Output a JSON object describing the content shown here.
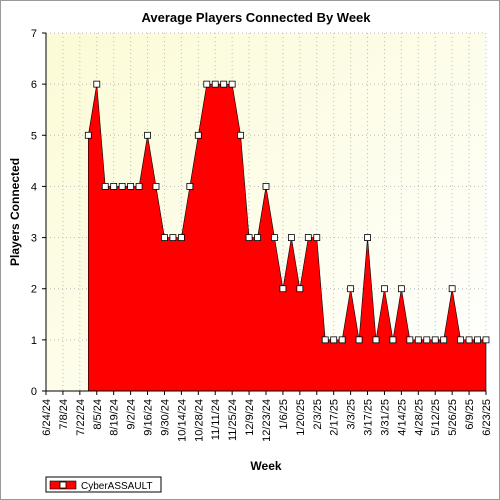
{
  "chart_data": {
    "type": "area",
    "title": "Average Players Connected By Week",
    "xlabel": "Week",
    "ylabel": "Players Connected",
    "ylim": [
      0,
      7
    ],
    "yticks": [
      0,
      1,
      2,
      3,
      4,
      5,
      6,
      7
    ],
    "grid": true,
    "legend": "bottom-left",
    "x_tick_labels": [
      "6/24/24",
      "7/8/24",
      "7/22/24",
      "8/5/24",
      "8/19/24",
      "9/2/24",
      "9/16/24",
      "9/30/24",
      "10/14/24",
      "10/28/24",
      "11/11/24",
      "11/25/24",
      "12/9/24",
      "12/23/24",
      "1/6/25",
      "1/20/25",
      "2/3/25",
      "2/17/25",
      "3/3/25",
      "3/17/25",
      "3/31/25",
      "4/14/25",
      "4/28/25",
      "5/12/25",
      "5/26/25",
      "6/9/25",
      "6/23/25"
    ],
    "x": [
      "6/24/24",
      "7/1/24",
      "7/8/24",
      "7/15/24",
      "7/22/24",
      "7/29/24",
      "8/5/24",
      "8/12/24",
      "8/19/24",
      "8/26/24",
      "9/2/24",
      "9/9/24",
      "9/16/24",
      "9/23/24",
      "9/30/24",
      "10/7/24",
      "10/14/24",
      "10/21/24",
      "10/28/24",
      "11/4/24",
      "11/11/24",
      "11/18/24",
      "11/25/24",
      "12/2/24",
      "12/9/24",
      "12/16/24",
      "12/23/24",
      "12/30/24",
      "1/6/25",
      "1/13/25",
      "1/20/25",
      "1/27/25",
      "2/3/25",
      "2/10/25",
      "2/17/25",
      "2/24/25",
      "3/3/25",
      "3/10/25",
      "3/17/25",
      "3/24/25",
      "3/31/25",
      "4/7/25",
      "4/14/25",
      "4/21/25",
      "4/28/25",
      "5/5/25",
      "5/12/25",
      "5/19/25",
      "5/26/25",
      "6/2/25",
      "6/9/25",
      "6/16/25",
      "6/23/25"
    ],
    "series": [
      {
        "name": "CyberASSAULT",
        "color": "#ff0000",
        "values": [
          null,
          null,
          null,
          null,
          null,
          5,
          6,
          4,
          4,
          4,
          4,
          4,
          5,
          4,
          3,
          3,
          3,
          4,
          5,
          6,
          6,
          6,
          6,
          5,
          3,
          3,
          4,
          3,
          2,
          3,
          2,
          3,
          3,
          1,
          1,
          1,
          2,
          1,
          3,
          1,
          2,
          1,
          2,
          1,
          1,
          1,
          1,
          1,
          2,
          1,
          1,
          1,
          1
        ]
      }
    ]
  }
}
